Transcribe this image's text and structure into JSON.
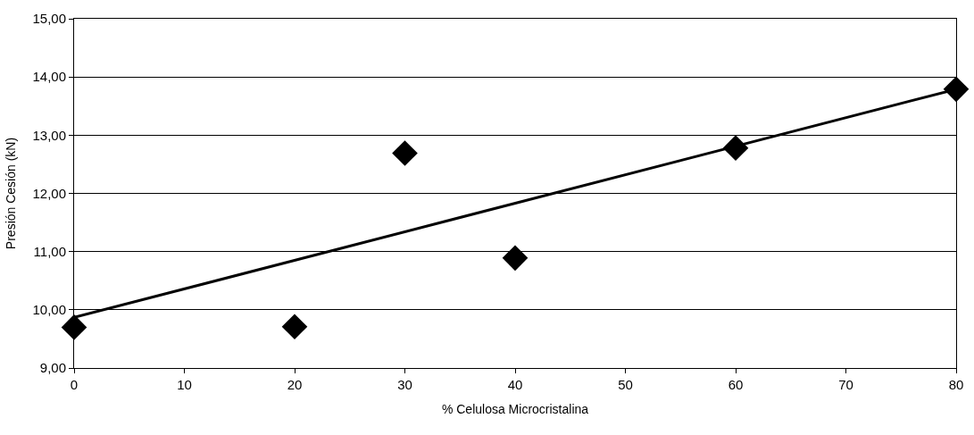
{
  "chart_data": {
    "type": "scatter",
    "xlabel": "% Celulosa Microcristalina",
    "ylabel": "Presión Cesión (kN)",
    "x": [
      0,
      20,
      30,
      40,
      60,
      80
    ],
    "series": [
      {
        "color": "#000000",
        "marker": "diamond",
        "values": [
          9.7,
          9.71,
          12.69,
          10.89,
          12.78,
          13.79
        ]
      },
      {
        "type": "line",
        "color": "#000000",
        "x": [
          0,
          80
        ],
        "values": [
          9.87,
          13.79
        ]
      }
    ],
    "xlim": [
      0,
      80
    ],
    "xticks": [
      0,
      10,
      20,
      30,
      40,
      50,
      60,
      70,
      80
    ],
    "ylim": [
      9,
      15
    ],
    "yticks": [
      {
        "value": 9,
        "label": "9,00"
      },
      {
        "value": 10,
        "label": "10,00"
      },
      {
        "value": 11,
        "label": "11,00"
      },
      {
        "value": 12,
        "label": "12,00"
      },
      {
        "value": 13,
        "label": "13,00"
      },
      {
        "value": 14,
        "label": "14,00"
      },
      {
        "value": 15,
        "label": "15,00"
      }
    ],
    "grid": "y",
    "legend": false
  }
}
